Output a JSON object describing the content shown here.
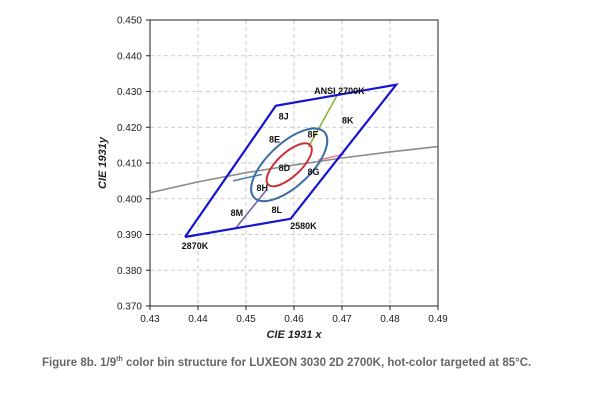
{
  "chart_data": {
    "type": "scatter",
    "title": "",
    "xlabel": "CIE 1931 x",
    "ylabel": "CIE 1931y",
    "xlim": [
      0.43,
      0.49
    ],
    "ylim": [
      0.37,
      0.45
    ],
    "x_ticks": [
      "0.43",
      "0.44",
      "0.45",
      "0.46",
      "0.47",
      "0.48",
      "0.49"
    ],
    "y_ticks": [
      "0.370",
      "0.380",
      "0.390",
      "0.400",
      "0.410",
      "0.420",
      "0.430",
      "0.440",
      "0.450"
    ],
    "grid": true,
    "colors": {
      "bin_outline": "#1414d2",
      "outer_ellipse": "#3c6ea5",
      "inner_ellipse": "#c8323c",
      "blackbody_locus": "#8c8c8c",
      "line_upper": "#8cb43c",
      "line_right": "#e68282",
      "line_lower": "#7864aa",
      "line_left": "#4682b4"
    },
    "series": [
      {
        "name": "",
        "kind": "bin_outline",
        "points": [
          [
            0.4373,
            0.3893
          ],
          [
            0.4562,
            0.426
          ],
          [
            0.4813,
            0.4319
          ],
          [
            0.4593,
            0.3944
          ],
          [
            0.4373,
            0.3893
          ]
        ]
      },
      {
        "name": "",
        "kind": "blackbody_locus",
        "points": [
          [
            0.43,
            0.4017
          ],
          [
            0.44,
            0.4047
          ],
          [
            0.45,
            0.4073
          ],
          [
            0.46,
            0.4094
          ],
          [
            0.47,
            0.4114
          ],
          [
            0.48,
            0.4131
          ],
          [
            0.49,
            0.4146
          ]
        ]
      },
      {
        "name": "",
        "kind": "segment_upper",
        "points": [
          [
            0.463,
            0.4144
          ],
          [
            0.469,
            0.429
          ]
        ]
      },
      {
        "name": "",
        "kind": "segment_right",
        "points": [
          [
            0.465,
            0.4108
          ],
          [
            0.4705,
            0.4125
          ]
        ]
      },
      {
        "name": "",
        "kind": "segment_lower",
        "points": [
          [
            0.4543,
            0.4025
          ],
          [
            0.448,
            0.392
          ]
        ]
      },
      {
        "name": "",
        "kind": "segment_left",
        "points": [
          [
            0.4533,
            0.4068
          ],
          [
            0.4473,
            0.405
          ]
        ]
      }
    ],
    "ellipses": [
      {
        "kind": "outer",
        "cx": 0.459,
        "cy": 0.4095,
        "rx": 0.01,
        "ry": 0.006,
        "rotation_deg": -43
      },
      {
        "kind": "inner",
        "cx": 0.459,
        "cy": 0.4095,
        "rx": 0.006,
        "ry": 0.0033,
        "rotation_deg": -43
      }
    ],
    "annotations": [
      {
        "text": "ANSI 2700K",
        "x": 0.4642,
        "y": 0.4293
      },
      {
        "text": "8J",
        "x": 0.4568,
        "y": 0.4222
      },
      {
        "text": "8K",
        "x": 0.47,
        "y": 0.421
      },
      {
        "text": "8F",
        "x": 0.4628,
        "y": 0.4172
      },
      {
        "text": "8E",
        "x": 0.4548,
        "y": 0.4157
      },
      {
        "text": "8D",
        "x": 0.4568,
        "y": 0.4077
      },
      {
        "text": "8G",
        "x": 0.4628,
        "y": 0.4067
      },
      {
        "text": "8H",
        "x": 0.4522,
        "y": 0.4022
      },
      {
        "text": "8M",
        "x": 0.4468,
        "y": 0.3952
      },
      {
        "text": "8L",
        "x": 0.4553,
        "y": 0.396
      },
      {
        "text": "2580K",
        "x": 0.4592,
        "y": 0.3916
      },
      {
        "text": "2870K",
        "x": 0.4366,
        "y": 0.386
      }
    ]
  },
  "caption": {
    "prefix": "Figure 8b. 1/9",
    "sup": "th",
    "suffix": " color bin structure for LUXEON 3030 2D 2700K, hot-color targeted at 85°C."
  }
}
